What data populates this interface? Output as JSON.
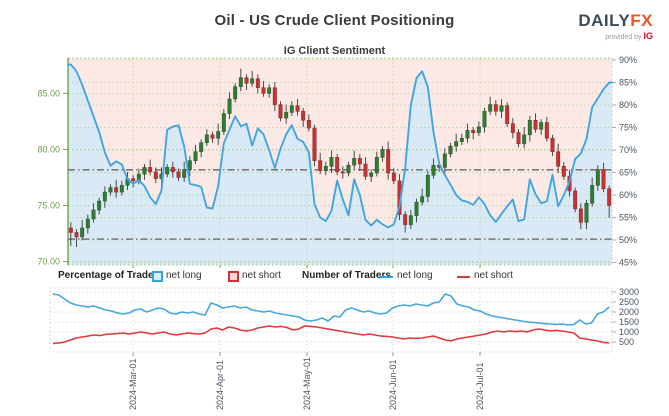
{
  "header": {
    "title": "Oil - US Crude Client Positioning",
    "logo": {
      "brand_dark": "DAILY",
      "brand_accent": "FX",
      "tagline": "provided by",
      "tagline_brand": "IG"
    }
  },
  "legend": {
    "groups": [
      {
        "label": "Percentage of Traders",
        "items": [
          {
            "label": "net long",
            "swatch": "square",
            "color": "#35a3dc"
          },
          {
            "label": "net short",
            "swatch": "square",
            "color": "#cf3434"
          }
        ]
      },
      {
        "label": "Number of Traders",
        "items": [
          {
            "label": "net long",
            "swatch": "line",
            "color": "#35a3dc"
          },
          {
            "label": "net short",
            "swatch": "line",
            "color": "#d93a3a"
          }
        ]
      }
    ]
  },
  "chart_data": [
    {
      "type": "candlestick+line",
      "title": "IG Client Sentiment",
      "legend_position": "below",
      "grid": true,
      "price_axis": {
        "side": "left",
        "labels": [
          "85.00",
          "80.00",
          "75.00",
          "70.00"
        ],
        "values": [
          85,
          80,
          75,
          70
        ],
        "range": [
          69.7,
          88.15
        ],
        "color": "#6fa24b"
      },
      "percent_axis": {
        "side": "right",
        "labels": [
          "90%",
          "85%",
          "80%",
          "75%",
          "70%",
          "65%",
          "60%",
          "55%",
          "50%",
          "45%"
        ],
        "values": [
          90,
          85,
          80,
          75,
          70,
          65,
          60,
          55,
          50,
          45
        ],
        "range": [
          44.45,
          90.45
        ],
        "color": "#49555f"
      },
      "x_ticks": {
        "labels": [
          "2024-Mar-01",
          "2024-Apr-01",
          "2024-May-01",
          "2024-Jun-01",
          "2024-Jul-01"
        ],
        "fractions": [
          0.1195,
          0.2794,
          0.4393,
          0.5975,
          0.7574
        ]
      },
      "reference_lines_pct": [
        65.6,
        50.2
      ],
      "colors": {
        "area_above": "#fce8e5",
        "area_below": "#d9eaf6",
        "sentiment_line": "#42a5e0",
        "candle_up": "#327b36",
        "candle_down": "#c43434",
        "wick": "#3a3a3a",
        "grid": "#abd096",
        "ref_line": "#787878"
      },
      "series_sentiment_name": "net long %",
      "sentiment_pct": [
        89,
        87.5,
        84.5,
        81,
        77.5,
        74,
        69.5,
        66.5,
        67.5,
        66.8,
        63.5,
        62.5,
        63.3,
        62,
        59.5,
        58,
        61,
        74.5,
        75.2,
        75.5,
        70.8,
        62.5,
        62.2,
        61.8,
        57.2,
        57,
        62,
        71.5,
        74.5,
        77.5,
        75.3,
        75.8,
        71,
        74.8,
        73.5,
        70,
        66,
        70.3,
        73.5,
        75.5,
        72.5,
        71.8,
        69.5,
        58,
        55,
        54.2,
        56.5,
        63.2,
        59,
        55.5,
        63.5,
        60,
        54.5,
        53.2,
        54.5,
        53.5,
        52.8,
        53.5,
        57.5,
        66,
        80,
        86,
        87.5,
        84,
        74,
        67,
        64.5,
        62.3,
        60,
        58.8,
        58.5,
        57.8,
        59.5,
        58,
        55.5,
        54,
        55.8,
        57.5,
        59,
        54.2,
        54.6,
        63.5,
        60.2,
        58.2,
        58.6,
        64.5,
        57.5,
        60,
        63,
        68,
        69.2,
        72.5,
        79.5,
        81.5,
        83.5,
        85
      ],
      "candles_ohlc": [
        [
          73.0,
          73.5,
          71.4,
          72.6
        ],
        [
          72.6,
          72.9,
          71.3,
          72.2
        ],
        [
          72.2,
          73.7,
          71.9,
          73.0
        ],
        [
          73.0,
          74.2,
          72.5,
          73.8
        ],
        [
          73.8,
          75.2,
          73.5,
          74.6
        ],
        [
          74.6,
          75.7,
          74.2,
          75.4
        ],
        [
          75.4,
          76.7,
          74.8,
          76.2
        ],
        [
          76.2,
          76.9,
          75.9,
          76.6
        ],
        [
          76.6,
          77.3,
          75.7,
          76.2
        ],
        [
          76.2,
          77.2,
          75.9,
          76.8
        ],
        [
          76.8,
          78.0,
          76.4,
          77.4
        ],
        [
          77.4,
          77.7,
          76.6,
          77.2
        ],
        [
          77.2,
          78.3,
          76.9,
          77.8
        ],
        [
          77.8,
          78.7,
          77.3,
          78.4
        ],
        [
          78.4,
          79.1,
          77.7,
          78.0
        ],
        [
          78.0,
          78.4,
          77.0,
          77.4
        ],
        [
          77.4,
          78.4,
          76.8,
          77.8
        ],
        [
          77.8,
          78.7,
          77.5,
          78.4
        ],
        [
          78.4,
          78.9,
          77.5,
          78.0
        ],
        [
          78.0,
          78.3,
          77.2,
          77.5
        ],
        [
          77.5,
          78.9,
          77.1,
          78.2
        ],
        [
          78.2,
          79.4,
          77.6,
          79.0
        ],
        [
          79.0,
          80.4,
          78.7,
          79.8
        ],
        [
          79.8,
          80.9,
          79.3,
          80.6
        ],
        [
          80.6,
          81.8,
          80.3,
          81.3
        ],
        [
          81.3,
          81.6,
          80.6,
          81.0
        ],
        [
          81.0,
          82.3,
          80.4,
          81.6
        ],
        [
          81.6,
          83.6,
          81.3,
          83.2
        ],
        [
          83.2,
          85.1,
          82.7,
          84.5
        ],
        [
          84.5,
          85.9,
          84.2,
          85.6
        ],
        [
          85.6,
          87.2,
          85.2,
          86.4
        ],
        [
          86.4,
          86.7,
          85.3,
          85.9
        ],
        [
          85.9,
          87.0,
          85.6,
          86.3
        ],
        [
          86.3,
          86.7,
          85.0,
          85.5
        ],
        [
          85.5,
          86.1,
          84.7,
          85.0
        ],
        [
          85.0,
          85.8,
          84.6,
          85.5
        ],
        [
          85.5,
          86.0,
          83.4,
          84.0
        ],
        [
          84.0,
          84.3,
          82.5,
          82.8
        ],
        [
          82.8,
          84.0,
          82.3,
          83.3
        ],
        [
          83.3,
          84.3,
          83.0,
          83.9
        ],
        [
          83.9,
          84.5,
          83.0,
          83.4
        ],
        [
          83.4,
          83.7,
          82.0,
          82.6
        ],
        [
          82.6,
          83.1,
          81.6,
          81.9
        ],
        [
          81.9,
          82.2,
          78.5,
          79.0
        ],
        [
          79.0,
          79.7,
          77.8,
          78.1
        ],
        [
          78.1,
          78.9,
          77.7,
          78.5
        ],
        [
          78.5,
          79.9,
          77.9,
          79.3
        ],
        [
          79.3,
          79.6,
          77.7,
          78.0
        ],
        [
          78.0,
          78.5,
          77.4,
          77.9
        ],
        [
          77.9,
          78.9,
          77.6,
          78.6
        ],
        [
          78.6,
          79.9,
          78.2,
          79.2
        ],
        [
          79.2,
          79.6,
          78.1,
          78.7
        ],
        [
          78.7,
          79.3,
          77.3,
          77.6
        ],
        [
          77.6,
          78.2,
          77.1,
          77.9
        ],
        [
          77.9,
          79.8,
          77.6,
          79.3
        ],
        [
          79.3,
          80.3,
          78.9,
          80.0
        ],
        [
          80.0,
          80.7,
          77.3,
          77.9
        ],
        [
          77.9,
          78.3,
          76.9,
          77.2
        ],
        [
          77.2,
          77.8,
          73.7,
          74.2
        ],
        [
          74.2,
          74.5,
          72.6,
          73.3
        ],
        [
          73.3,
          74.6,
          72.9,
          74.1
        ],
        [
          74.1,
          75.6,
          73.5,
          75.3
        ],
        [
          75.3,
          76.5,
          75.0,
          75.8
        ],
        [
          75.8,
          78.1,
          75.3,
          77.7
        ],
        [
          77.7,
          79.2,
          77.4,
          78.6
        ],
        [
          78.6,
          78.9,
          78.0,
          78.4
        ],
        [
          78.4,
          80.1,
          77.8,
          79.6
        ],
        [
          79.6,
          80.6,
          79.3,
          80.3
        ],
        [
          80.3,
          81.4,
          79.8,
          80.7
        ],
        [
          80.7,
          81.4,
          80.4,
          81.0
        ],
        [
          81.0,
          82.3,
          80.6,
          81.7
        ],
        [
          81.7,
          82.0,
          80.9,
          81.5
        ],
        [
          81.5,
          82.5,
          81.2,
          82.0
        ],
        [
          82.0,
          83.7,
          81.5,
          83.4
        ],
        [
          83.4,
          84.7,
          83.1,
          84.0
        ],
        [
          84.0,
          84.4,
          83.0,
          83.4
        ],
        [
          83.4,
          84.5,
          82.8,
          83.9
        ],
        [
          83.9,
          84.2,
          82.0,
          82.3
        ],
        [
          82.3,
          82.8,
          81.0,
          81.5
        ],
        [
          81.5,
          81.8,
          80.2,
          80.5
        ],
        [
          80.5,
          82.0,
          80.1,
          81.3
        ],
        [
          81.3,
          83.0,
          80.7,
          82.6
        ],
        [
          82.6,
          83.2,
          81.5,
          81.8
        ],
        [
          81.8,
          82.7,
          81.3,
          82.4
        ],
        [
          82.4,
          82.9,
          80.7,
          81.0
        ],
        [
          81.0,
          81.3,
          79.4,
          79.8
        ],
        [
          79.8,
          80.5,
          77.9,
          78.5
        ],
        [
          78.5,
          78.9,
          77.3,
          77.6
        ],
        [
          77.6,
          78.2,
          75.8,
          76.3
        ],
        [
          76.3,
          76.6,
          74.4,
          74.7
        ],
        [
          74.7,
          75.2,
          72.9,
          73.5
        ],
        [
          73.5,
          75.5,
          72.9,
          75.2
        ],
        [
          75.2,
          77.5,
          74.9,
          76.8
        ],
        [
          76.8,
          78.6,
          76.3,
          78.2
        ],
        [
          78.2,
          78.8,
          76.2,
          76.5
        ],
        [
          76.5,
          76.8,
          73.9,
          75.0
        ]
      ]
    },
    {
      "type": "line",
      "title": "Number of Traders",
      "y_axis": {
        "side": "right",
        "labels": [
          "3000",
          "2500",
          "2000",
          "1500",
          "1000",
          "500"
        ],
        "values": [
          3000,
          2500,
          2000,
          1500,
          1000,
          500
        ],
        "range": [
          0,
          3200
        ],
        "color": "#49555f"
      },
      "x_ticks": {
        "labels": [
          "2024-Mar-01",
          "2024-Apr-01",
          "2024-May-01",
          "2024-Jun-01",
          "2024-Jul-01"
        ],
        "fractions": [
          0.1477,
          0.3025,
          0.4573,
          0.6103,
          0.7651
        ]
      },
      "colors": {
        "grid": "#cfcfcf",
        "net_long": "#45a7e3",
        "net_short": "#e03a3a"
      },
      "series": [
        {
          "name": "net long",
          "values": [
            2900,
            2850,
            2650,
            2450,
            2350,
            2300,
            2250,
            2300,
            2200,
            2100,
            2050,
            1950,
            1900,
            1950,
            2100,
            2150,
            2000,
            2100,
            2200,
            2150,
            1950,
            1900,
            2000,
            1950,
            2000,
            1900,
            1850,
            2450,
            2350,
            2200,
            2250,
            2300,
            2200,
            2250,
            2100,
            2050,
            2000,
            2050,
            1950,
            1900,
            1850,
            1800,
            1750,
            1600,
            1550,
            1600,
            1700,
            1550,
            1800,
            1750,
            2100,
            2200,
            2100,
            2000,
            2050,
            1950,
            1900,
            1950,
            2200,
            2300,
            2350,
            2300,
            2400,
            2350,
            2300,
            2450,
            2500,
            2900,
            2800,
            2400,
            2300,
            2250,
            2100,
            2050,
            1900,
            1800,
            1750,
            1700,
            1650,
            1600,
            1550,
            1500,
            1480,
            1450,
            1420,
            1400,
            1380,
            1400,
            1350,
            1380,
            1600,
            1400,
            1450,
            1900,
            2000,
            2250
          ]
        },
        {
          "name": "net short",
          "values": [
            420,
            450,
            500,
            600,
            700,
            750,
            800,
            850,
            820,
            880,
            900,
            920,
            950,
            900,
            950,
            1000,
            950,
            900,
            950,
            1000,
            900,
            850,
            900,
            950,
            920,
            900,
            950,
            1150,
            1200,
            1100,
            1250,
            1200,
            1100,
            1050,
            1100,
            1200,
            1250,
            1300,
            1250,
            1280,
            1220,
            1100,
            1150,
            1300,
            1280,
            1250,
            1200,
            1150,
            1100,
            1050,
            1000,
            950,
            900,
            850,
            900,
            850,
            800,
            780,
            750,
            700,
            650,
            700,
            680,
            700,
            750,
            800,
            700,
            600,
            550,
            650,
            700,
            750,
            800,
            850,
            900,
            1000,
            1050,
            1000,
            1050,
            1020,
            1050,
            1000,
            1100,
            1150,
            1100,
            1050,
            1080,
            1050,
            1000,
            950,
            700,
            650,
            600,
            550,
            480,
            450
          ]
        }
      ]
    }
  ]
}
